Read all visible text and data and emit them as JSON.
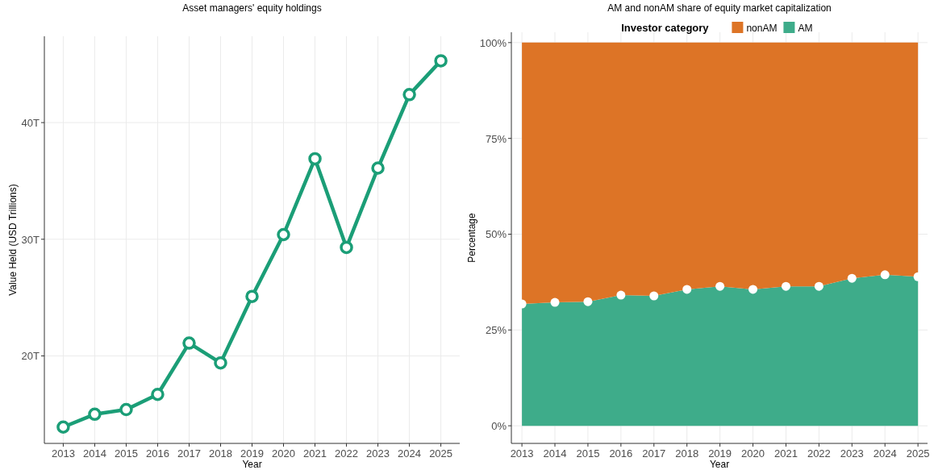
{
  "chart_data": [
    {
      "type": "line",
      "title": "Asset managers' equity holdings",
      "xlabel": "Year",
      "ylabel": "Value Held (USD Trillions)",
      "x": [
        2013,
        2014,
        2015,
        2016,
        2017,
        2018,
        2019,
        2020,
        2021,
        2022,
        2023,
        2024,
        2025
      ],
      "series": [
        {
          "color": "#1b9e77",
          "values": [
            13.9,
            15.0,
            15.4,
            16.7,
            21.1,
            19.4,
            25.1,
            30.4,
            36.9,
            29.3,
            36.1,
            42.4,
            45.3
          ]
        }
      ],
      "xlim": [
        2012.4,
        2025.6
      ],
      "xticks": [
        2013,
        2014,
        2015,
        2016,
        2017,
        2018,
        2019,
        2020,
        2021,
        2022,
        2023,
        2024,
        2025
      ],
      "ylim": [
        12.5,
        47.4
      ],
      "yticks": [
        {
          "value": 20,
          "label": "20T"
        },
        {
          "value": 30,
          "label": "30T"
        },
        {
          "value": 40,
          "label": "40T"
        }
      ],
      "grid": true,
      "marker": "circle",
      "legend": false
    },
    {
      "type": "area",
      "stacked": true,
      "title": "AM and nonAM share of equity market capitalization",
      "xlabel": "Year",
      "ylabel": "Percentage",
      "legend_title": "Investor category",
      "x": [
        2013,
        2014,
        2015,
        2016,
        2017,
        2018,
        2019,
        2020,
        2021,
        2022,
        2023,
        2024,
        2025
      ],
      "series": [
        {
          "name": "AM",
          "color": "#3eac8a",
          "marker": "circle",
          "values": [
            31.8,
            32.2,
            32.4,
            34.1,
            33.9,
            35.6,
            36.4,
            35.6,
            36.4,
            36.4,
            38.5,
            39.4,
            38.9
          ]
        },
        {
          "name": "nonAM",
          "color": "#dd7426",
          "marker": "none",
          "values": [
            68.2,
            67.8,
            67.6,
            65.9,
            66.1,
            64.4,
            63.6,
            64.4,
            63.6,
            63.6,
            61.5,
            60.6,
            61.1
          ]
        }
      ],
      "xlim": [
        2012.68,
        2025.29
      ],
      "xticks": [
        2013,
        2014,
        2015,
        2016,
        2017,
        2018,
        2019,
        2020,
        2021,
        2022,
        2023,
        2024,
        2025
      ],
      "ylim": [
        -4.6,
        102.7
      ],
      "yticks": [
        {
          "value": 0,
          "label": "0%"
        },
        {
          "value": 25,
          "label": "25%"
        },
        {
          "value": 50,
          "label": "50%"
        },
        {
          "value": 75,
          "label": "75%"
        },
        {
          "value": 100,
          "label": "100%"
        }
      ],
      "grid": true,
      "legend": "top"
    }
  ]
}
